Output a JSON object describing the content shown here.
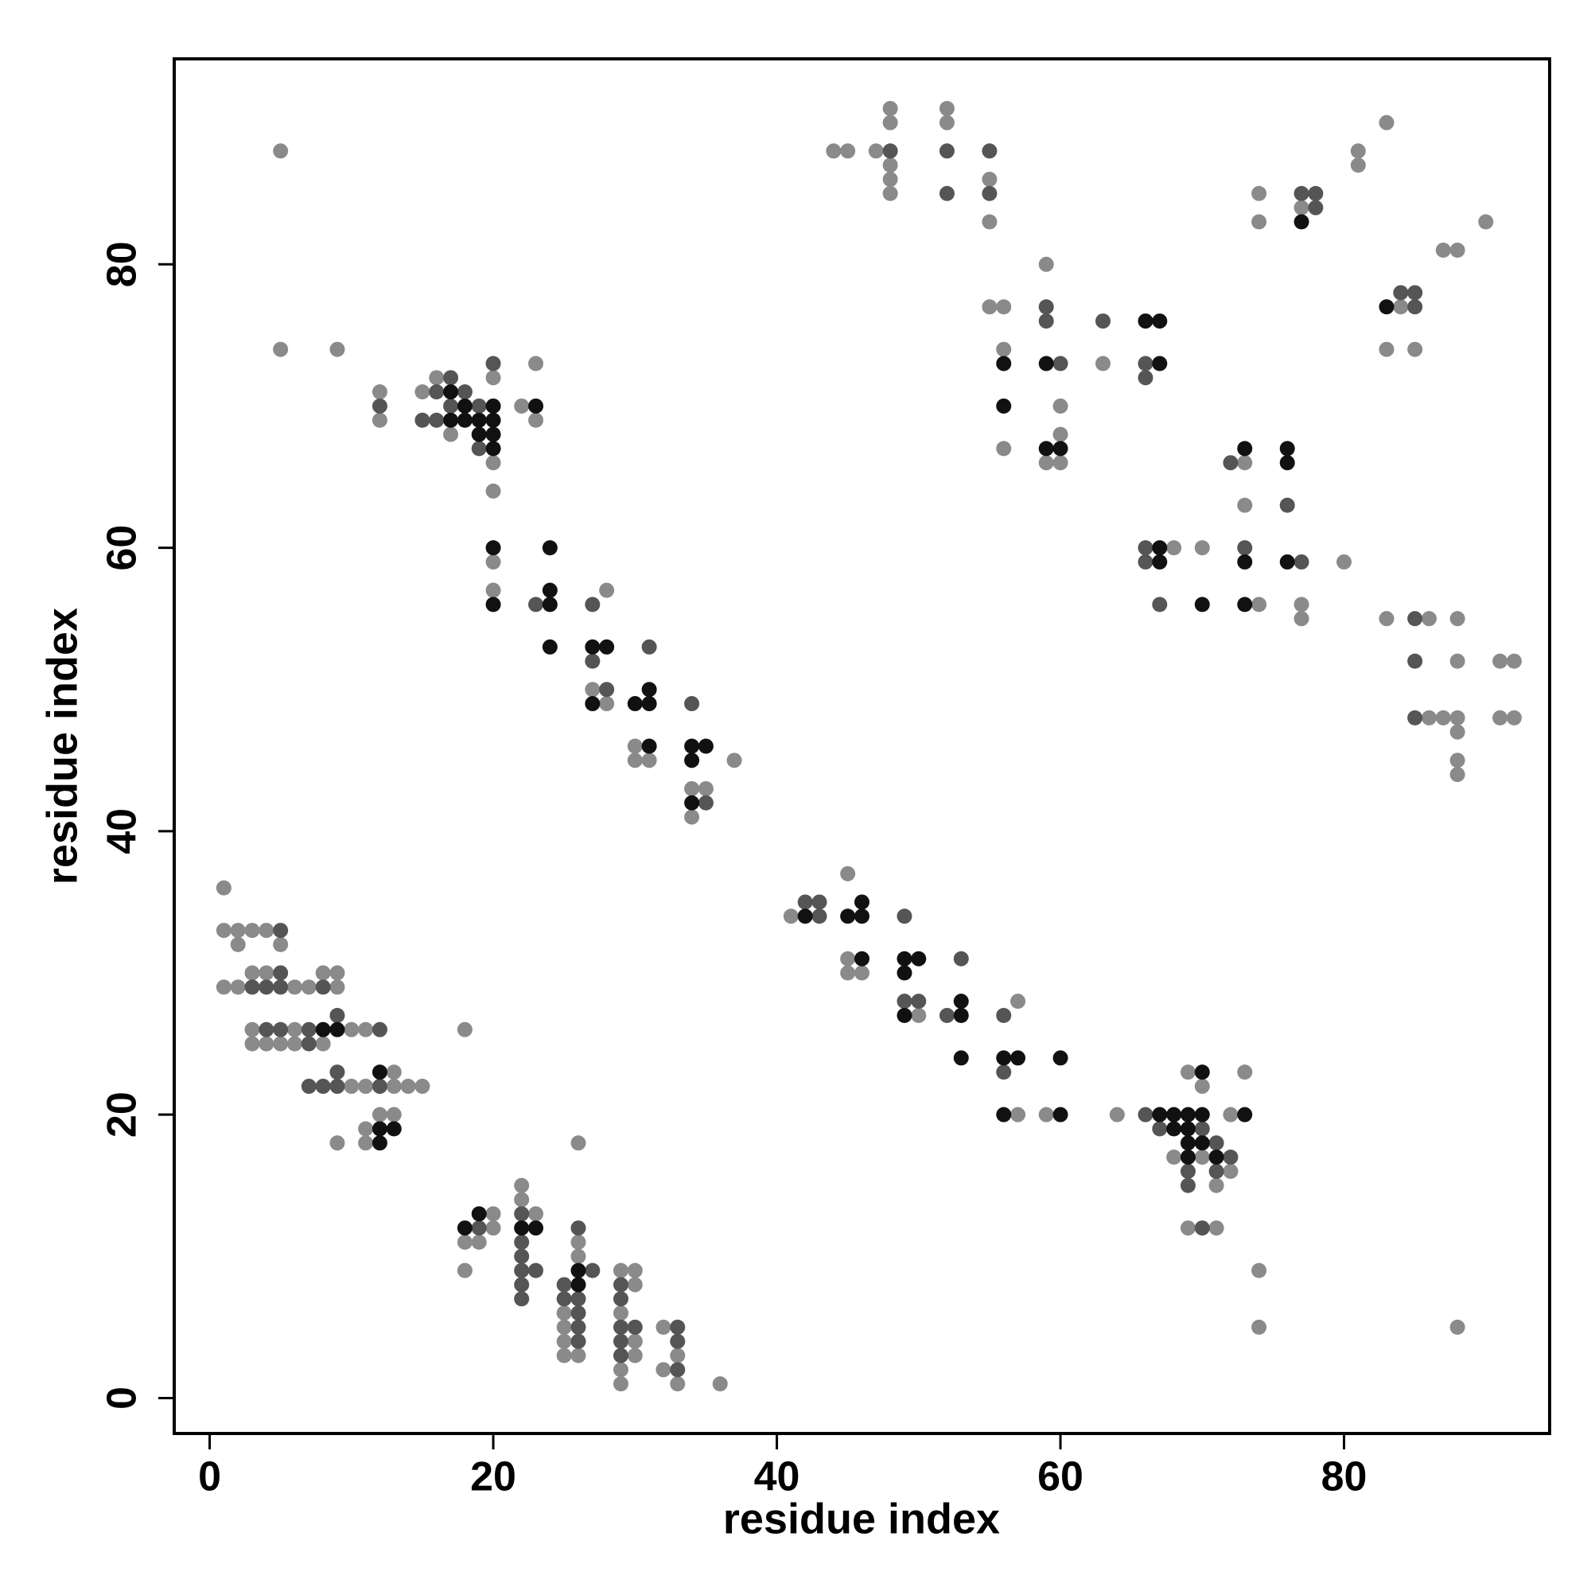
{
  "chart_data": {
    "type": "scatter",
    "xlabel": "residue index",
    "ylabel": "residue index",
    "xlim": [
      -2.5,
      94.5
    ],
    "ylim": [
      -2.5,
      94.5
    ],
    "xticks": [
      0,
      20,
      40,
      60,
      80
    ],
    "yticks": [
      0,
      20,
      40,
      60,
      80
    ],
    "series": [
      {
        "color": "#8a8a8a",
        "x": [
          5,
          5,
          9,
          12,
          12,
          15,
          16,
          17,
          20,
          20,
          20,
          22,
          23,
          23,
          20,
          20,
          28,
          27,
          28,
          30,
          30,
          31,
          37,
          34,
          35,
          34,
          1,
          1,
          2,
          3,
          4,
          2,
          5,
          3,
          4,
          9,
          8,
          1,
          2,
          6,
          7,
          9,
          3,
          6,
          10,
          11,
          3,
          4,
          5,
          6,
          8,
          18,
          10,
          11,
          13,
          14,
          15,
          13,
          12,
          13,
          11,
          11,
          9,
          20,
          20,
          18,
          19,
          18,
          22,
          22,
          23,
          26,
          26,
          26,
          25,
          25,
          25,
          25,
          26,
          29,
          30,
          30,
          29,
          30,
          30,
          29,
          29,
          32,
          33,
          32,
          33,
          36,
          41,
          45,
          45,
          45,
          46,
          50,
          57,
          57,
          59,
          64,
          69,
          70,
          68,
          70,
          72,
          71,
          72,
          73,
          69,
          71,
          74,
          74,
          88,
          44,
          45,
          47,
          48,
          48,
          48,
          48,
          48,
          52,
          52,
          55,
          55,
          55,
          56,
          56,
          56,
          59,
          60,
          60,
          59,
          60,
          63,
          68,
          70,
          73,
          73,
          74,
          77,
          77,
          80,
          74,
          74,
          77,
          81,
          81,
          83,
          84,
          83,
          85,
          87,
          88,
          90,
          83,
          86,
          88,
          88,
          91,
          92,
          86,
          87,
          88,
          88,
          91,
          92,
          88,
          88
        ],
        "values": [
          88,
          74,
          74,
          71,
          69,
          71,
          72,
          68,
          72,
          66,
          64,
          70,
          73,
          69,
          59,
          57,
          57,
          50,
          49,
          46,
          45,
          45,
          45,
          43,
          43,
          41,
          36,
          33,
          33,
          33,
          33,
          32,
          32,
          30,
          30,
          30,
          30,
          29,
          29,
          29,
          29,
          29,
          26,
          26,
          26,
          26,
          25,
          25,
          25,
          25,
          25,
          26,
          22,
          22,
          22,
          22,
          22,
          23,
          20,
          20,
          19,
          18,
          18,
          13,
          12,
          11,
          11,
          9,
          15,
          14,
          13,
          18,
          11,
          10,
          6,
          5,
          4,
          3,
          3,
          9,
          9,
          8,
          6,
          4,
          3,
          2,
          1,
          5,
          3,
          2,
          1,
          1,
          34,
          37,
          31,
          30,
          30,
          27,
          28,
          20,
          20,
          20,
          23,
          22,
          17,
          17,
          16,
          15,
          20,
          23,
          12,
          12,
          9,
          5,
          5,
          88,
          88,
          88,
          91,
          90,
          87,
          86,
          85,
          91,
          90,
          86,
          83,
          77,
          77,
          74,
          67,
          80,
          70,
          68,
          66,
          66,
          73,
          60,
          60,
          66,
          63,
          56,
          56,
          55,
          59,
          85,
          83,
          84,
          88,
          87,
          90,
          77,
          74,
          74,
          81,
          81,
          83,
          55,
          55,
          55,
          52,
          52,
          52,
          48,
          48,
          48,
          47,
          48,
          48,
          45,
          44
        ]
      },
      {
        "color": "#555555",
        "x": [
          12,
          15,
          16,
          16,
          17,
          17,
          18,
          19,
          19,
          20,
          23,
          27,
          27,
          28,
          31,
          34,
          35,
          5,
          5,
          3,
          4,
          5,
          8,
          9,
          4,
          5,
          7,
          12,
          7,
          7,
          8,
          9,
          12,
          9,
          19,
          22,
          22,
          22,
          22,
          23,
          22,
          22,
          26,
          27,
          25,
          25,
          26,
          26,
          26,
          26,
          29,
          29,
          29,
          30,
          29,
          29,
          33,
          33,
          33,
          42,
          43,
          43,
          49,
          49,
          50,
          53,
          52,
          56,
          56,
          66,
          67,
          70,
          69,
          69,
          71,
          72,
          71,
          70,
          48,
          52,
          52,
          55,
          55,
          59,
          59,
          60,
          63,
          66,
          66,
          66,
          66,
          67,
          72,
          73,
          76,
          77,
          77,
          78,
          78,
          84,
          85,
          85,
          85,
          85,
          85
        ],
        "values": [
          70,
          69,
          71,
          69,
          72,
          70,
          71,
          70,
          67,
          73,
          56,
          56,
          52,
          50,
          53,
          49,
          42,
          33,
          30,
          29,
          29,
          29,
          29,
          27,
          26,
          26,
          26,
          26,
          25,
          22,
          22,
          22,
          22,
          23,
          12,
          13,
          11,
          10,
          9,
          9,
          8,
          7,
          12,
          9,
          8,
          7,
          7,
          6,
          5,
          4,
          8,
          7,
          5,
          5,
          4,
          3,
          5,
          4,
          2,
          35,
          35,
          34,
          34,
          28,
          28,
          31,
          27,
          27,
          23,
          20,
          19,
          19,
          16,
          15,
          18,
          17,
          16,
          12,
          88,
          88,
          85,
          88,
          85,
          77,
          76,
          73,
          76,
          73,
          72,
          60,
          59,
          56,
          66,
          60,
          63,
          59,
          85,
          85,
          84,
          78,
          78,
          77,
          55,
          52,
          48
        ]
      },
      {
        "color": "#111111",
        "x": [
          17,
          17,
          18,
          18,
          19,
          19,
          20,
          20,
          20,
          20,
          23,
          20,
          20,
          24,
          24,
          24,
          24,
          27,
          28,
          27,
          30,
          31,
          31,
          31,
          34,
          35,
          34,
          34,
          8,
          9,
          12,
          12,
          13,
          12,
          18,
          19,
          22,
          23,
          26,
          26,
          42,
          45,
          46,
          46,
          46,
          49,
          50,
          49,
          49,
          53,
          53,
          53,
          56,
          57,
          56,
          60,
          60,
          67,
          68,
          69,
          70,
          68,
          69,
          70,
          69,
          70,
          69,
          71,
          73,
          56,
          56,
          59,
          59,
          60,
          66,
          67,
          67,
          67,
          67,
          70,
          73,
          73,
          73,
          76,
          76,
          76,
          77,
          83
        ],
        "values": [
          71,
          69,
          70,
          69,
          69,
          68,
          70,
          69,
          68,
          67,
          70,
          60,
          56,
          60,
          57,
          56,
          53,
          53,
          53,
          49,
          49,
          50,
          49,
          46,
          46,
          46,
          45,
          42,
          26,
          26,
          23,
          19,
          19,
          18,
          12,
          13,
          12,
          12,
          9,
          8,
          34,
          34,
          35,
          34,
          31,
          31,
          31,
          30,
          27,
          28,
          27,
          24,
          24,
          24,
          20,
          20,
          24,
          20,
          20,
          20,
          20,
          19,
          19,
          23,
          18,
          18,
          17,
          17,
          20,
          73,
          70,
          73,
          67,
          67,
          76,
          76,
          73,
          60,
          59,
          56,
          67,
          59,
          56,
          67,
          66,
          59,
          83,
          77
        ]
      }
    ]
  }
}
